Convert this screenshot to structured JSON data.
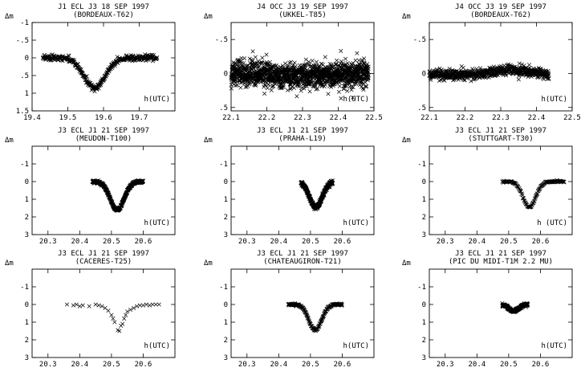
{
  "chart_data": [
    {
      "type": "scatter",
      "title": "J1 ECL J3 18 SEP 1997",
      "subtitle": "(BORDEAUX-T62)",
      "ylabel": "Δm",
      "xlabel": "h(UTC)",
      "xlim": [
        19.4,
        19.8
      ],
      "ylim": [
        -1,
        1.5
      ],
      "y_inverted": true,
      "xticks": [
        "19.4",
        "19.5",
        "19.6",
        "19.7"
      ],
      "xtick_values": [
        19.4,
        19.5,
        19.6,
        19.7
      ],
      "yticks": [
        "-1",
        "-.5",
        "0",
        ".5",
        "1",
        "1.5"
      ],
      "ytick_values": [
        -1,
        -0.5,
        0,
        0.5,
        1,
        1.5
      ],
      "curve": {
        "x_start": 19.43,
        "x_end": 19.75,
        "baseline": 0.0,
        "center": 19.575,
        "depth": 0.85,
        "width": 0.03,
        "noise": 0.07,
        "n_points": 380
      }
    },
    {
      "type": "scatter",
      "title": "J4 OCC J3 19 SEP 1997",
      "subtitle": "(UKKEL-T85)",
      "ylabel": "Δm",
      "xlabel": "h(UTC)",
      "xlim": [
        22.1,
        22.5
      ],
      "ylim": [
        -0.75,
        0.55
      ],
      "y_inverted": true,
      "xticks": [
        "22.1",
        "22.2",
        "22.3",
        "22.4",
        "22.5"
      ],
      "xtick_values": [
        22.1,
        22.2,
        22.3,
        22.4,
        22.5
      ],
      "yticks": [
        "-.5",
        "0",
        ".5"
      ],
      "ytick_values": [
        -0.5,
        0,
        0.5
      ],
      "curve": {
        "x_start": 22.1,
        "x_end": 22.485,
        "baseline": 0.0,
        "center": 22.3,
        "depth": 0.03,
        "width": 0.08,
        "noise": 0.17,
        "n_points": 1400
      }
    },
    {
      "type": "scatter",
      "title": "J4 OCC J3 19 SEP 1997",
      "subtitle": "(BORDEAUX-T62)",
      "ylabel": "Δm",
      "xlabel": "h(UTC)",
      "xlim": [
        22.1,
        22.5
      ],
      "ylim": [
        -0.75,
        0.55
      ],
      "y_inverted": true,
      "xticks": [
        "22.1",
        "22.2",
        "22.3",
        "22.4",
        "22.5"
      ],
      "xtick_values": [
        22.1,
        22.2,
        22.3,
        22.4,
        22.5
      ],
      "yticks": [
        "-.5",
        "0",
        ".5"
      ],
      "ytick_values": [
        -0.5,
        0,
        0.5
      ],
      "curve": {
        "x_start": 22.1,
        "x_end": 22.435,
        "baseline": 0.02,
        "center": 22.33,
        "depth": -0.07,
        "width": 0.05,
        "noise": 0.07,
        "n_points": 650
      }
    },
    {
      "type": "scatter",
      "title": "J3 ECL J1 21 SEP 1997",
      "subtitle": "(MEUDON-T100)",
      "ylabel": "Δm",
      "xlabel": "h(UTC)",
      "xlim": [
        20.25,
        20.7
      ],
      "ylim": [
        -2,
        3
      ],
      "y_inverted": true,
      "xticks": [
        "20.3",
        "20.4",
        "20.5",
        "20.6"
      ],
      "xtick_values": [
        20.3,
        20.4,
        20.5,
        20.6
      ],
      "yticks": [
        "-1",
        "0",
        "1",
        "2",
        "3"
      ],
      "ytick_values": [
        -1,
        0,
        1,
        2,
        3
      ],
      "curve": {
        "x_start": 20.44,
        "x_end": 20.6,
        "baseline": 0.0,
        "center": 20.518,
        "depth": 1.6,
        "width": 0.022,
        "noise": 0.07,
        "n_points": 420
      }
    },
    {
      "type": "scatter",
      "title": "J3 ECL J1 21 SEP 1997",
      "subtitle": "(PRAHA-L19)",
      "ylabel": "Δm",
      "xlabel": "h(UTC)",
      "xlim": [
        20.25,
        20.7
      ],
      "ylim": [
        -2,
        3
      ],
      "y_inverted": true,
      "xticks": [
        "20.3",
        "20.4",
        "20.5",
        "20.6"
      ],
      "xtick_values": [
        20.3,
        20.4,
        20.5,
        20.6
      ],
      "yticks": [
        "-1",
        "0",
        "1",
        "2",
        "3"
      ],
      "ytick_values": [
        -1,
        0,
        1,
        2,
        3
      ],
      "curve": {
        "x_start": 20.47,
        "x_end": 20.57,
        "baseline": 0.0,
        "center": 20.517,
        "depth": 1.45,
        "width": 0.02,
        "noise": 0.1,
        "n_points": 340
      }
    },
    {
      "type": "scatter",
      "title": "J3 ECL J1 21 SEP 1997",
      "subtitle": "(STUTTGART-T30)",
      "ylabel": "Δm",
      "xlabel": "h (UTC)",
      "xlim": [
        20.25,
        20.7
      ],
      "ylim": [
        -2,
        3
      ],
      "y_inverted": true,
      "xticks": [
        "20.3",
        "20.4",
        "20.5",
        "20.6"
      ],
      "xtick_values": [
        20.3,
        20.4,
        20.5,
        20.6
      ],
      "yticks": [
        "-1",
        "0",
        "1",
        "2",
        "3"
      ],
      "ytick_values": [
        -1,
        0,
        1,
        2,
        3
      ],
      "curve": {
        "x_start": 20.48,
        "x_end": 20.675,
        "baseline": 0.0,
        "center": 20.565,
        "depth": 1.45,
        "width": 0.02,
        "noise": 0.05,
        "n_points": 140
      }
    },
    {
      "type": "scatter",
      "title": "J3 ECL J1 21 SEP 1997",
      "subtitle": "(CACERES-T25)",
      "ylabel": "Δm",
      "xlabel": "h(UTC)",
      "xlim": [
        20.25,
        20.7
      ],
      "ylim": [
        -2,
        3
      ],
      "y_inverted": true,
      "xticks": [
        "20.3",
        "20.4",
        "20.5",
        "20.6"
      ],
      "xtick_values": [
        20.3,
        20.4,
        20.5,
        20.6
      ],
      "yticks": [
        "-1",
        "0",
        "1",
        "2",
        "3"
      ],
      "ytick_values": [
        -1,
        0,
        1,
        2,
        3
      ],
      "points": [
        [
          20.36,
          0.0
        ],
        [
          20.38,
          0.05
        ],
        [
          20.39,
          0.0
        ],
        [
          20.4,
          0.1
        ],
        [
          20.41,
          0.05
        ],
        [
          20.43,
          0.1
        ],
        [
          20.45,
          0.0
        ],
        [
          20.46,
          0.05
        ],
        [
          20.47,
          0.1
        ],
        [
          20.48,
          0.2
        ],
        [
          20.49,
          0.35
        ],
        [
          20.5,
          0.6
        ],
        [
          20.505,
          0.8
        ],
        [
          20.51,
          1.0
        ],
        [
          20.52,
          1.45
        ],
        [
          20.525,
          1.5
        ],
        [
          20.53,
          1.2
        ],
        [
          20.535,
          1.1
        ],
        [
          20.54,
          0.8
        ],
        [
          20.545,
          0.6
        ],
        [
          20.55,
          0.4
        ],
        [
          20.56,
          0.3
        ],
        [
          20.57,
          0.2
        ],
        [
          20.58,
          0.1
        ],
        [
          20.59,
          0.05
        ],
        [
          20.6,
          0.05
        ],
        [
          20.61,
          0.0
        ],
        [
          20.62,
          0.05
        ],
        [
          20.63,
          0.0
        ],
        [
          20.64,
          0.0
        ],
        [
          20.65,
          0.0
        ]
      ]
    },
    {
      "type": "scatter",
      "title": "J3 ECL J1 21 SEP 1997",
      "subtitle": "(CHATEAUGIRON-T21)",
      "ylabel": "Δm",
      "xlabel": "h(UTC)",
      "xlim": [
        20.25,
        20.7
      ],
      "ylim": [
        -2,
        3
      ],
      "y_inverted": true,
      "xticks": [
        "20.3",
        "20.4",
        "20.5",
        "20.6"
      ],
      "xtick_values": [
        20.3,
        20.4,
        20.5,
        20.6
      ],
      "yticks": [
        "-1",
        "0",
        "1",
        "2",
        "3"
      ],
      "ytick_values": [
        -1,
        0,
        1,
        2,
        3
      ],
      "curve": {
        "x_start": 20.43,
        "x_end": 20.6,
        "baseline": 0.0,
        "center": 20.515,
        "depth": 1.45,
        "width": 0.02,
        "noise": 0.06,
        "n_points": 170
      }
    },
    {
      "type": "scatter",
      "title": "J3 ECL J1 21 SEP 1997",
      "subtitle": "(PIC DU MIDI-T1M 2.2 MU)",
      "ylabel": "Δm",
      "xlabel": "h(UTC)",
      "xlim": [
        20.25,
        20.7
      ],
      "ylim": [
        -2,
        3
      ],
      "y_inverted": true,
      "xticks": [
        "20.3",
        "20.4",
        "20.5",
        "20.6"
      ],
      "xtick_values": [
        20.3,
        20.4,
        20.5,
        20.6
      ],
      "yticks": [
        "-1",
        "0",
        "1",
        "2",
        "3"
      ],
      "ytick_values": [
        -1,
        0,
        1,
        2,
        3
      ],
      "curve": {
        "x_start": 20.48,
        "x_end": 20.56,
        "baseline": 0.0,
        "center": 20.516,
        "depth": 0.38,
        "width": 0.015,
        "noise": 0.07,
        "n_points": 260
      }
    }
  ]
}
